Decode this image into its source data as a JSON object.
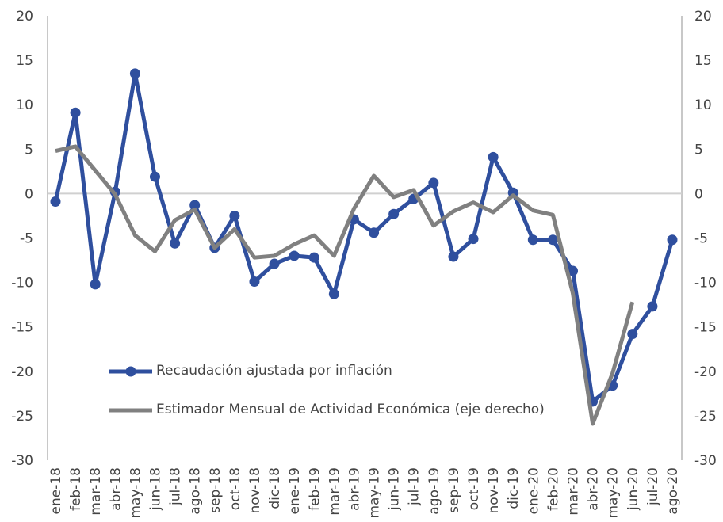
{
  "chart_data": {
    "type": "line",
    "categories": [
      "ene-18",
      "feb-18",
      "mar-18",
      "abr-18",
      "may-18",
      "jun-18",
      "jul-18",
      "ago-18",
      "sep-18",
      "oct-18",
      "nov-18",
      "dic-18",
      "ene-19",
      "feb-19",
      "mar-19",
      "abr-19",
      "may-19",
      "jun-19",
      "jul-19",
      "ago-19",
      "sep-19",
      "oct-19",
      "nov-19",
      "dic-19",
      "ene-20",
      "feb-20",
      "mar-20",
      "abr-20",
      "may-20",
      "jun-20",
      "jul-20",
      "ago-20"
    ],
    "series": [
      {
        "name": "Recaudación ajustada por inflación",
        "color": "#2f4f9e",
        "markers": true,
        "values": [
          -0.9,
          9.1,
          -10.2,
          0.2,
          13.5,
          1.9,
          -5.6,
          -1.3,
          -6.1,
          -2.5,
          -9.9,
          -7.9,
          -7.0,
          -7.2,
          -11.3,
          -2.9,
          -4.4,
          -2.3,
          -0.6,
          1.2,
          -7.1,
          -5.1,
          4.1,
          0.1,
          -5.2,
          -5.2,
          -8.7,
          -23.4,
          -21.6,
          -15.8,
          -12.7,
          -5.2
        ]
      },
      {
        "name": "Estimador Mensual de Actividad Económica (eje derecho)",
        "color": "#808080",
        "markers": false,
        "axis": "y2",
        "values": [
          4.8,
          5.3,
          2.6,
          -0.1,
          -4.7,
          -6.5,
          -3.0,
          -1.8,
          -6.1,
          -4.0,
          -7.2,
          -7.0,
          -5.7,
          -4.7,
          -7.0,
          -1.7,
          2.0,
          -0.4,
          0.4,
          -3.6,
          -2.0,
          -1.0,
          -2.1,
          -0.2,
          -1.9,
          -2.4,
          -11.2,
          -25.9,
          -20.2,
          -12.2,
          null,
          null
        ]
      }
    ],
    "ylim": [
      -30,
      20
    ],
    "yticks": [
      -30,
      -25,
      -20,
      -15,
      -10,
      -5,
      0,
      5,
      10,
      15,
      20
    ],
    "y2lim": [
      -30,
      20
    ],
    "y2ticks": [
      -30,
      -25,
      -20,
      -15,
      -10,
      -5,
      0,
      5,
      10,
      15,
      20
    ]
  }
}
